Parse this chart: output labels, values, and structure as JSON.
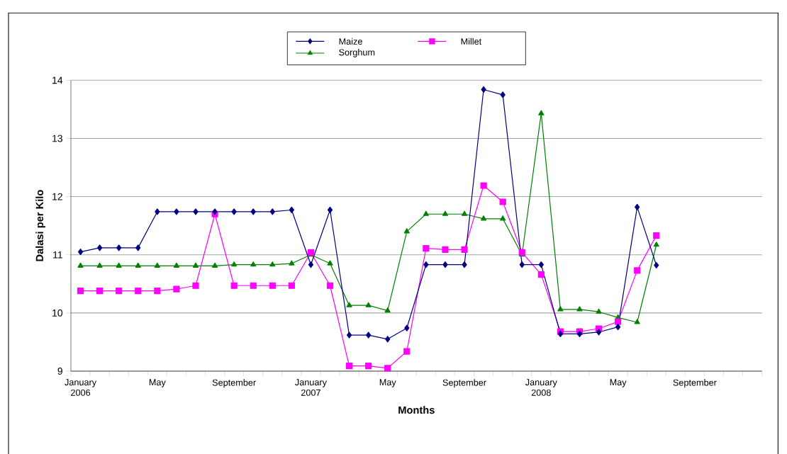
{
  "chart_data": {
    "type": "line",
    "xlabel": "Months",
    "ylabel": "Dalasi per Kilo",
    "categories": [
      "January 2006",
      null,
      null,
      null,
      "May",
      null,
      null,
      null,
      "September",
      null,
      null,
      null,
      "January 2007",
      null,
      null,
      null,
      "May",
      null,
      null,
      null,
      "September",
      null,
      null,
      null,
      "January 2008",
      null,
      null,
      null,
      "May",
      null,
      null,
      null,
      "September",
      null,
      null,
      null
    ],
    "series": [
      {
        "name": "Maize",
        "color": "#000080",
        "marker": "diamond",
        "values": [
          11.05,
          11.12,
          11.12,
          11.12,
          11.74,
          11.74,
          11.74,
          11.74,
          11.74,
          11.74,
          11.74,
          11.77,
          10.83,
          11.77,
          9.62,
          9.62,
          9.55,
          9.74,
          10.83,
          10.83,
          10.83,
          13.84,
          13.75,
          10.83,
          10.83,
          9.64,
          9.64,
          9.67,
          9.76,
          11.82,
          10.82,
          null,
          null,
          null,
          null,
          null
        ]
      },
      {
        "name": "Millet",
        "color": "#ff00ff",
        "marker": "square",
        "values": [
          10.38,
          10.38,
          10.38,
          10.38,
          10.38,
          10.41,
          10.47,
          11.7,
          10.47,
          10.47,
          10.47,
          10.47,
          11.04,
          10.47,
          9.09,
          9.09,
          9.05,
          9.34,
          11.11,
          11.09,
          11.09,
          12.19,
          11.91,
          11.04,
          10.66,
          9.68,
          9.68,
          9.73,
          9.85,
          10.73,
          11.33,
          null,
          null,
          null,
          null,
          null
        ]
      },
      {
        "name": "Sorghum",
        "color": "#008000",
        "marker": "triangle",
        "values": [
          10.81,
          10.81,
          10.81,
          10.81,
          10.81,
          10.81,
          10.81,
          10.81,
          10.83,
          10.83,
          10.83,
          10.85,
          11.0,
          10.85,
          10.13,
          10.13,
          10.04,
          11.4,
          11.7,
          11.7,
          11.7,
          11.62,
          11.62,
          11.0,
          13.43,
          10.06,
          10.06,
          10.02,
          9.92,
          9.84,
          11.17,
          null,
          null,
          null,
          null,
          null
        ]
      }
    ],
    "ylim": [
      9,
      14
    ],
    "yticks": [
      9,
      10,
      11,
      12,
      13,
      14
    ],
    "grid": "y",
    "legend": "top",
    "line_style": "solid"
  }
}
